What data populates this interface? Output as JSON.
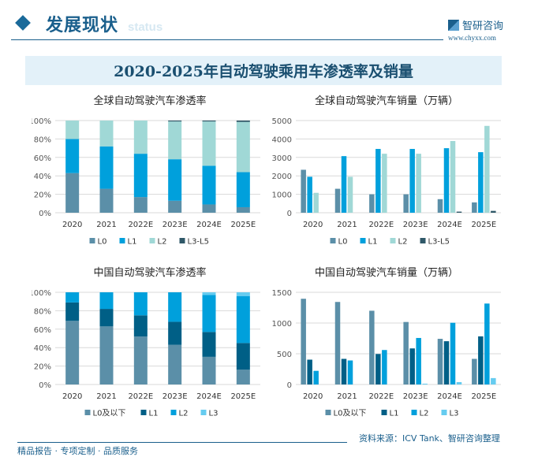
{
  "header": {
    "section_title": "发展现状",
    "section_subtitle": "status",
    "logo_name": "智研咨询",
    "logo_url": "www.chyxx.com"
  },
  "banner_title": "2020-2025年自动驾驶乘用车渗透率及销量",
  "footer": {
    "slogan": "精品报告 · 专项定制 · 品质服务",
    "source": "资料来源：ICV Tank、智研咨询整理"
  },
  "chart_data": [
    {
      "id": "global-penetration",
      "type": "bar",
      "stacked": true,
      "title": "全球自动驾驶汽车渗透率",
      "categories": [
        "2020",
        "2021",
        "2022E",
        "2023E",
        "2024E",
        "2025E"
      ],
      "ylim": [
        0,
        100
      ],
      "yticks": [
        0,
        20,
        40,
        60,
        80,
        100
      ],
      "ytick_format": "percent",
      "grid": true,
      "legend": "bottom",
      "series": [
        {
          "name": "L0",
          "color": "#5b8fa8",
          "values": [
            43,
            26,
            17,
            13,
            9,
            6
          ]
        },
        {
          "name": "L1",
          "color": "#00a0dc",
          "values": [
            37,
            46,
            47,
            45,
            42,
            38
          ]
        },
        {
          "name": "L2",
          "color": "#a0d8d6",
          "values": [
            20,
            28,
            36,
            41,
            48,
            54.5
          ]
        },
        {
          "name": "L3-L5",
          "color": "#2f5868",
          "values": [
            0,
            0,
            0,
            1,
            1,
            1.5
          ]
        }
      ]
    },
    {
      "id": "global-sales",
      "type": "bar",
      "stacked": false,
      "title": "全球自动驾驶汽车销量（万辆）",
      "categories": [
        "2020",
        "2021",
        "2022E",
        "2023E",
        "2024E",
        "2025E"
      ],
      "ylim": [
        0,
        5000
      ],
      "yticks": [
        0,
        1000,
        2000,
        3000,
        4000,
        5000
      ],
      "grid": true,
      "legend": "bottom",
      "series": [
        {
          "name": "L0",
          "color": "#5b8fa8",
          "values": [
            2330,
            1300,
            1000,
            1000,
            735,
            560
          ]
        },
        {
          "name": "L1",
          "color": "#00a0dc",
          "values": [
            1950,
            3070,
            3460,
            3460,
            3500,
            3285
          ]
        },
        {
          "name": "L2",
          "color": "#a0d8d6",
          "values": [
            1080,
            1950,
            3200,
            3200,
            3890,
            4710
          ]
        },
        {
          "name": "L3-L5",
          "color": "#2f5868",
          "values": [
            0,
            0,
            0,
            0,
            60,
            100
          ]
        }
      ]
    },
    {
      "id": "china-penetration",
      "type": "bar",
      "stacked": true,
      "title": "中国自动驾驶汽车渗透率",
      "categories": [
        "2020",
        "2021",
        "2022E",
        "2023E",
        "2024E",
        "2025E"
      ],
      "ylim": [
        0,
        100
      ],
      "yticks": [
        0,
        20,
        40,
        60,
        80,
        100
      ],
      "ytick_format": "percent",
      "grid": true,
      "legend": "bottom",
      "series": [
        {
          "name": "L0及以下",
          "color": "#5b8fa8",
          "values": [
            69,
            63,
            52,
            43,
            30,
            16
          ]
        },
        {
          "name": "L1",
          "color": "#005f86",
          "values": [
            20,
            19,
            23,
            25,
            27,
            29
          ]
        },
        {
          "name": "L2",
          "color": "#00a0dc",
          "values": [
            11,
            18,
            25,
            32,
            40,
            51
          ]
        },
        {
          "name": "L3",
          "color": "#66ccf0",
          "values": [
            0,
            0,
            0,
            0,
            3,
            4
          ]
        }
      ]
    },
    {
      "id": "china-sales",
      "type": "bar",
      "stacked": false,
      "title": "中国自动驾驶汽车销量（万辆）",
      "categories": [
        "2020",
        "2021",
        "2022E",
        "2023E",
        "2024E",
        "2025E"
      ],
      "ylim": [
        0,
        1500
      ],
      "yticks": [
        0,
        500,
        1000,
        1500
      ],
      "grid": true,
      "legend": "bottom",
      "series": [
        {
          "name": "L0及以下",
          "color": "#5b8fa8",
          "values": [
            1395,
            1343,
            1200,
            1017,
            743,
            417
          ]
        },
        {
          "name": "L1",
          "color": "#005f86",
          "values": [
            404,
            417,
            496,
            587,
            704,
            783
          ]
        },
        {
          "name": "L2",
          "color": "#00a0dc",
          "values": [
            222,
            391,
            561,
            757,
            1004,
            1317
          ]
        },
        {
          "name": "L3",
          "color": "#66ccf0",
          "values": [
            0,
            0,
            0,
            13,
            39,
            104
          ]
        }
      ]
    }
  ]
}
